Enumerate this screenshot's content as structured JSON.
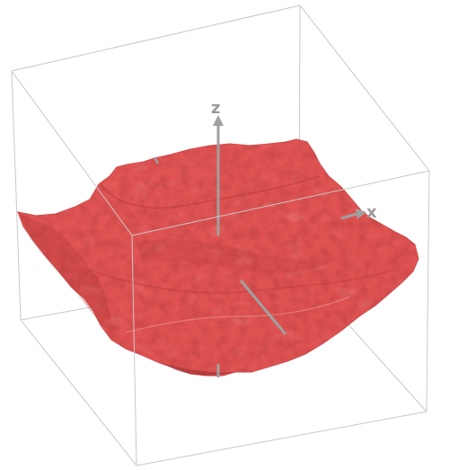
{
  "scene": {
    "axes": {
      "x_label": "x",
      "z_label": "z"
    },
    "colors": {
      "background": "#ffffff",
      "box_edges": "#c8c8c8",
      "surface_base": "#e05353",
      "surface_dark": "#a33131",
      "surface_light": "#f08c8c",
      "axis_color": "#a0a0a0"
    }
  }
}
